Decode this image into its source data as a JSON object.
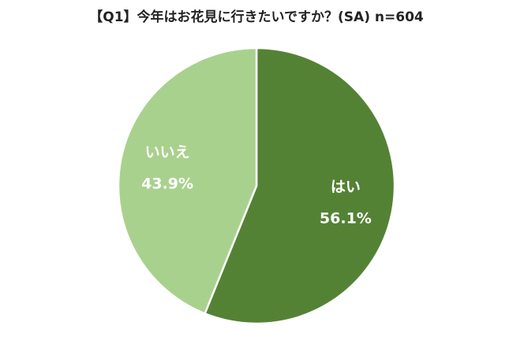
{
  "chart_data": {
    "type": "pie",
    "title": "【Q1】今年はお花見に行きたいですか？(SA) n=604",
    "categories": [
      "はい",
      "いいえ"
    ],
    "values": [
      56.1,
      43.9
    ],
    "value_labels": [
      "56.1%",
      "43.9%"
    ],
    "colors": [
      "#548235",
      "#a9d18e"
    ]
  }
}
